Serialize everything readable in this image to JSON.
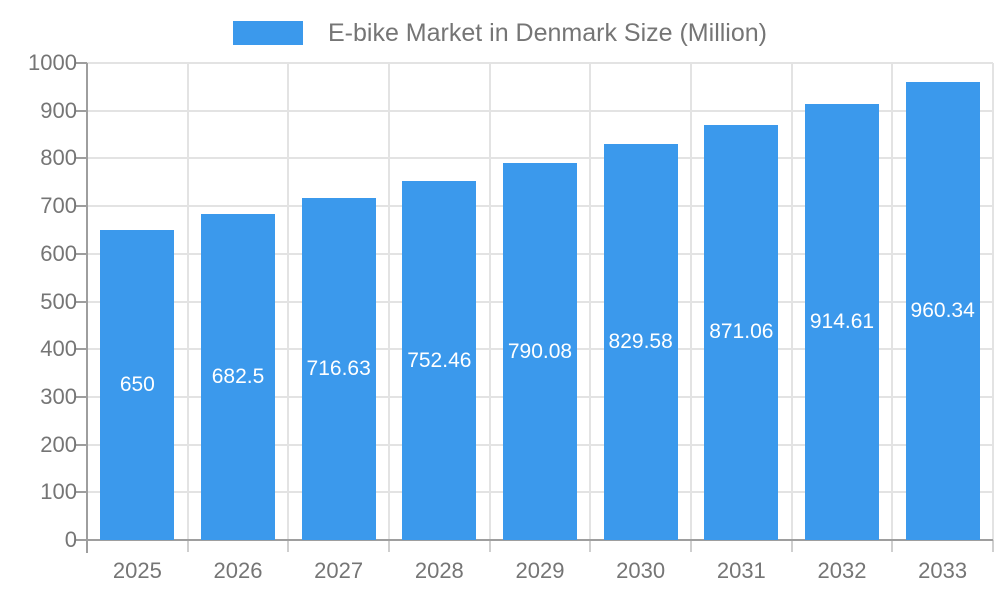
{
  "chart_data": {
    "type": "bar",
    "title": "E-bike Market in Denmark Size (Million)",
    "series_name": "E-bike Market in Denmark Size (Million)",
    "categories": [
      "2025",
      "2026",
      "2027",
      "2028",
      "2029",
      "2030",
      "2031",
      "2032",
      "2033"
    ],
    "values": [
      650,
      682.5,
      716.63,
      752.46,
      790.08,
      829.58,
      871.06,
      914.61,
      960.34
    ],
    "value_labels": [
      "650",
      "682.5",
      "716.63",
      "752.46",
      "790.08",
      "829.58",
      "871.06",
      "914.61",
      "960.34"
    ],
    "xlabel": "",
    "ylabel": "",
    "ylim": [
      0,
      1000
    ],
    "yticks": [
      0,
      100,
      200,
      300,
      400,
      500,
      600,
      700,
      800,
      900,
      1000
    ],
    "ytick_labels": [
      "0",
      "100",
      "200",
      "300",
      "400",
      "500",
      "600",
      "700",
      "800",
      "900",
      "1000"
    ],
    "grid": true,
    "value_label_position": "inside-center",
    "legend_position": "top",
    "colors": {
      "bar": "#3B99EC",
      "value_text": "#ffffff",
      "axis_text": "#757575",
      "legend_text": "#757575",
      "grid_line": "#e3e3e3",
      "axis_line": "#9e9e9e",
      "x_tick_line": "#cfcfcf",
      "background": "#ffffff"
    }
  }
}
